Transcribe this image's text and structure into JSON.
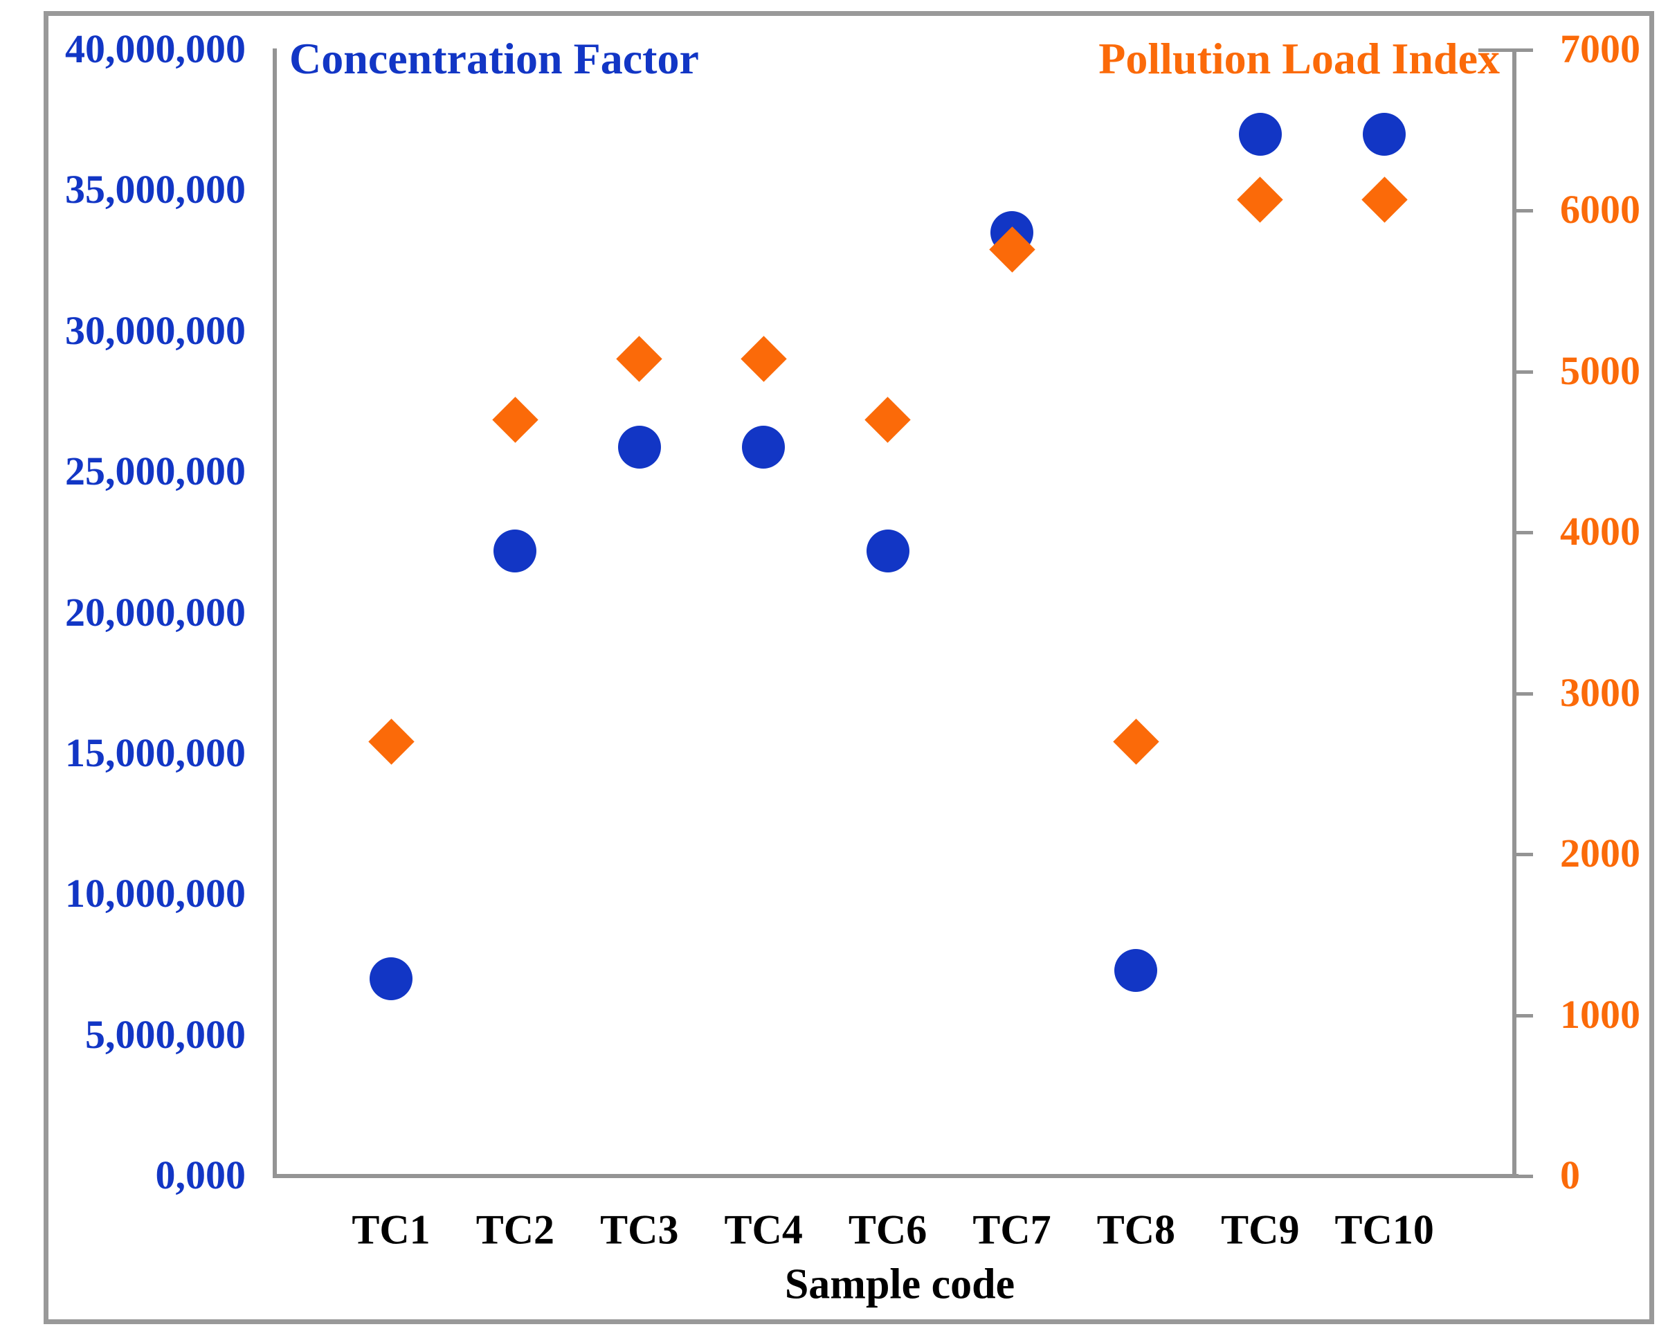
{
  "figure": {
    "left_title": "Concentration Factor",
    "right_title": "Pollution Load Index",
    "x_axis_title": "Sample code"
  },
  "colors": {
    "concentration_factor_blue": "#1236c5",
    "pollution_load_orange": "#fb6a09",
    "axis_gray": "#949494",
    "border_gray": "#999999",
    "category_label_black": "#000000",
    "background": "#ffffff"
  },
  "chart_data": {
    "type": "scatter",
    "title": "Concentration Factor / Pollution Load Index vs Sample code",
    "xlabel": "Sample code",
    "grid": false,
    "legend_position": "top corners as colored axis titles",
    "categories": [
      "TC1",
      "TC2",
      "TC3",
      "TC4",
      "TC6",
      "TC7",
      "TC8",
      "TC9",
      "TC10"
    ],
    "series": [
      {
        "name": "Concentration Factor",
        "axis": "left",
        "marker": "circle",
        "color": "#1236c5",
        "values": [
          7000000,
          22200000,
          25900000,
          25900000,
          22200000,
          33500000,
          7300000,
          37000000,
          37000000
        ]
      },
      {
        "name": "Pollution Load Index",
        "axis": "right",
        "marker": "diamond",
        "color": "#fb6a09",
        "values": [
          2700,
          4700,
          5080,
          5080,
          4700,
          5760,
          2700,
          6070,
          6070
        ]
      }
    ],
    "left_axis": {
      "title": "Concentration Factor",
      "min": 0,
      "max": 40000000,
      "tick_step": 5000000,
      "tick_labels_top_to_bottom": [
        "40,000,000",
        "35,000,000",
        "30,000,000",
        "25,000,000",
        "20,000,000",
        "15,000,000",
        "10,000,000",
        "5,000,000",
        "0,000"
      ],
      "color": "#1236c5"
    },
    "right_axis": {
      "title": "Pollution Load Index",
      "min": 0,
      "max": 7000,
      "tick_step": 1000,
      "tick_labels_top_to_bottom": [
        "7000",
        "6000",
        "5000",
        "4000",
        "3000",
        "2000",
        "1000",
        "0"
      ],
      "color": "#fb6a09"
    }
  }
}
